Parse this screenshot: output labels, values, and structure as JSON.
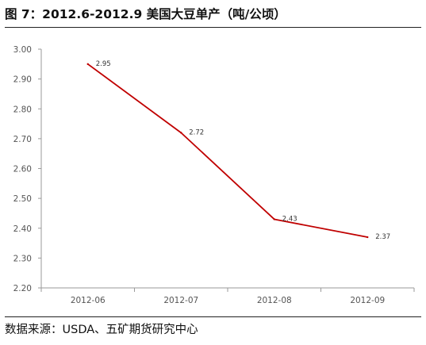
{
  "title": "图 7：2012.6-2012.9 美国大豆单产（吨/公顷）",
  "source": "数据来源：USDA、五矿期货研究中心",
  "chart_data": {
    "type": "line",
    "title": "图 7：2012.6-2012.9 美国大豆单产（吨/公顷）",
    "xlabel": "",
    "ylabel": "",
    "categories": [
      "2012-06",
      "2012-07",
      "2012-08",
      "2012-09"
    ],
    "series": [
      {
        "values": [
          2.95,
          2.72,
          2.43,
          2.37
        ],
        "color": "#c00000"
      }
    ],
    "ylim": [
      2.2,
      3.0
    ],
    "yticks": [
      "2.20",
      "2.30",
      "2.40",
      "2.50",
      "2.60",
      "2.70",
      "2.80",
      "2.90",
      "3.00"
    ],
    "data_labels": [
      "2.95",
      "2.72",
      "2.43",
      "2.37"
    ],
    "grid": false,
    "legend": "none"
  }
}
